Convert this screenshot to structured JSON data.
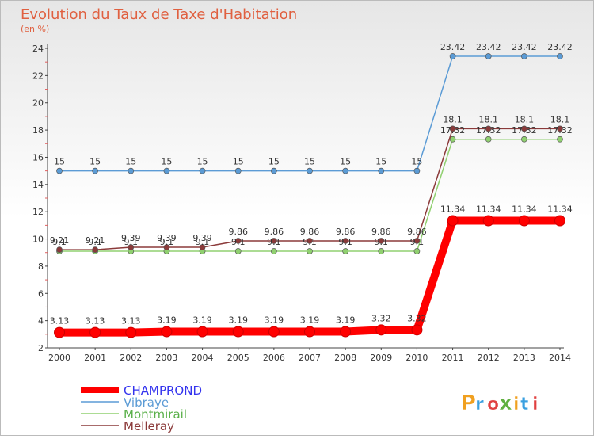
{
  "page": {
    "title": "Evolution du Taux de Taxe d'Habitation",
    "subtitle": "(en %)"
  },
  "logo": {
    "text": "Proxiti",
    "colors": [
      "#f0a020",
      "#3aa0e0",
      "#e04040",
      "#60b040",
      "#f0a020",
      "#3aa0e0",
      "#e04040"
    ]
  },
  "chart_data": {
    "type": "line",
    "title": "Evolution du Taux de Taxe d'Habitation",
    "subtitle": "(en %)",
    "xlabel": "",
    "ylabel": "",
    "x": [
      2000,
      2001,
      2002,
      2003,
      2004,
      2005,
      2006,
      2007,
      2008,
      2009,
      2010,
      2011,
      2012,
      2013,
      2014
    ],
    "ylim": [
      2,
      24
    ],
    "yticks": [
      2,
      4,
      6,
      8,
      10,
      12,
      14,
      16,
      18,
      20,
      22,
      24
    ],
    "grid": "none",
    "legend_position": "bottom-left",
    "series": [
      {
        "name": "CHAMPROND",
        "color": "#ff0000",
        "legend_text_color": "#3333ee",
        "values": [
          3.13,
          3.13,
          3.13,
          3.19,
          3.19,
          3.19,
          3.19,
          3.19,
          3.19,
          3.32,
          3.32,
          11.34,
          11.34,
          11.34,
          11.34
        ],
        "labels": [
          "3.13",
          "3.13",
          "3.13",
          "3.19",
          "3.19",
          "3.19",
          "3.19",
          "3.19",
          "3.19",
          "3.32",
          "3.32",
          "11.34",
          "11.34",
          "11.34",
          "11.34"
        ]
      },
      {
        "name": "Vibraye",
        "color": "#5b9bd5",
        "legend_text_color": "#5b9bd5",
        "values": [
          15,
          15,
          15,
          15,
          15,
          15,
          15,
          15,
          15,
          15,
          15,
          23.42,
          23.42,
          23.42,
          23.42
        ],
        "labels": [
          "15",
          "15",
          "15",
          "15",
          "15",
          "15",
          "15",
          "15",
          "15",
          "15",
          "15",
          "23.42",
          "23.42",
          "23.42",
          "23.42"
        ]
      },
      {
        "name": "Montmirail",
        "color": "#90d070",
        "legend_text_color": "#5ab04a",
        "values": [
          9.1,
          9.1,
          9.1,
          9.1,
          9.1,
          9.1,
          9.1,
          9.1,
          9.1,
          9.1,
          9.1,
          17.32,
          17.32,
          17.32,
          17.32
        ],
        "labels": [
          "9.1",
          "9.1",
          "9.1",
          "9.1",
          "9.1",
          "9.1",
          "9.1",
          "9.1",
          "9.1",
          "9.1",
          "9.1",
          "17.32",
          "17.32",
          "17.32",
          "17.32"
        ]
      },
      {
        "name": "Melleray",
        "color": "#8b3a3a",
        "legend_text_color": "#8b3a3a",
        "values": [
          9.21,
          9.21,
          9.39,
          9.39,
          9.39,
          9.86,
          9.86,
          9.86,
          9.86,
          9.86,
          9.86,
          18.1,
          18.1,
          18.1,
          18.1
        ],
        "labels": [
          "9.21",
          "9.21",
          "9.39",
          "9.39",
          "9.39",
          "9.86",
          "9.86",
          "9.86",
          "9.86",
          "9.86",
          "9.86",
          "18.1",
          "18.1",
          "18.1",
          "18.1"
        ]
      }
    ]
  }
}
